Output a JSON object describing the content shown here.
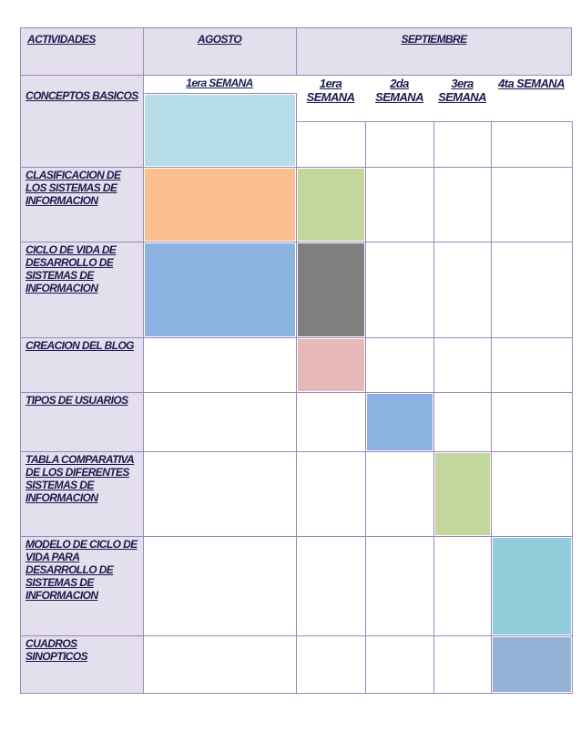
{
  "header": {
    "activities": "ACTIVIDADES",
    "august": "AGOSTO",
    "september": "SEPTIEMBRE"
  },
  "weeks": {
    "august": "1era SEMANA",
    "september": [
      "1era SEMANA",
      "2da SEMANA",
      "3era SEMANA",
      "4ta SEMANA"
    ]
  },
  "rows": [
    {
      "label": "CONCEPTOS BASICOS",
      "fills": [
        "#b7dde8",
        null,
        null,
        null,
        null
      ]
    },
    {
      "label": "CLASIFICACION DE LOS SISTEMAS DE INFORMACION",
      "fills": [
        "#fabf8f",
        "#c3d69b",
        null,
        null,
        null
      ]
    },
    {
      "label": "CICLO DE VIDA DE DESARROLLO DE SISTEMAS DE INFORMACION",
      "fills": [
        "#8db3e2",
        "#7f7f7f",
        null,
        null,
        null
      ]
    },
    {
      "label": "CREACION DEL BLOG",
      "fills": [
        null,
        "#e6b9b8",
        null,
        null,
        null
      ]
    },
    {
      "label": "TIPOS DE USUARIOS",
      "fills": [
        null,
        null,
        "#8db3e2",
        null,
        null
      ]
    },
    {
      "label": "TABLA COMPARATIVA DE LOS DIFERENTES SISTEMAS DE INFORMACION",
      "fills": [
        null,
        null,
        null,
        "#c3d69b",
        null
      ]
    },
    {
      "label": "MODELO DE CICLO DE VIDA PARA DESARROLLO DE SISTEMAS DE INFORMACION",
      "fills": [
        null,
        null,
        null,
        null,
        "#92cddc"
      ]
    },
    {
      "label": "CUADROS SINOPTICOS",
      "fills": [
        null,
        null,
        null,
        null,
        "#95b3d7"
      ]
    }
  ]
}
